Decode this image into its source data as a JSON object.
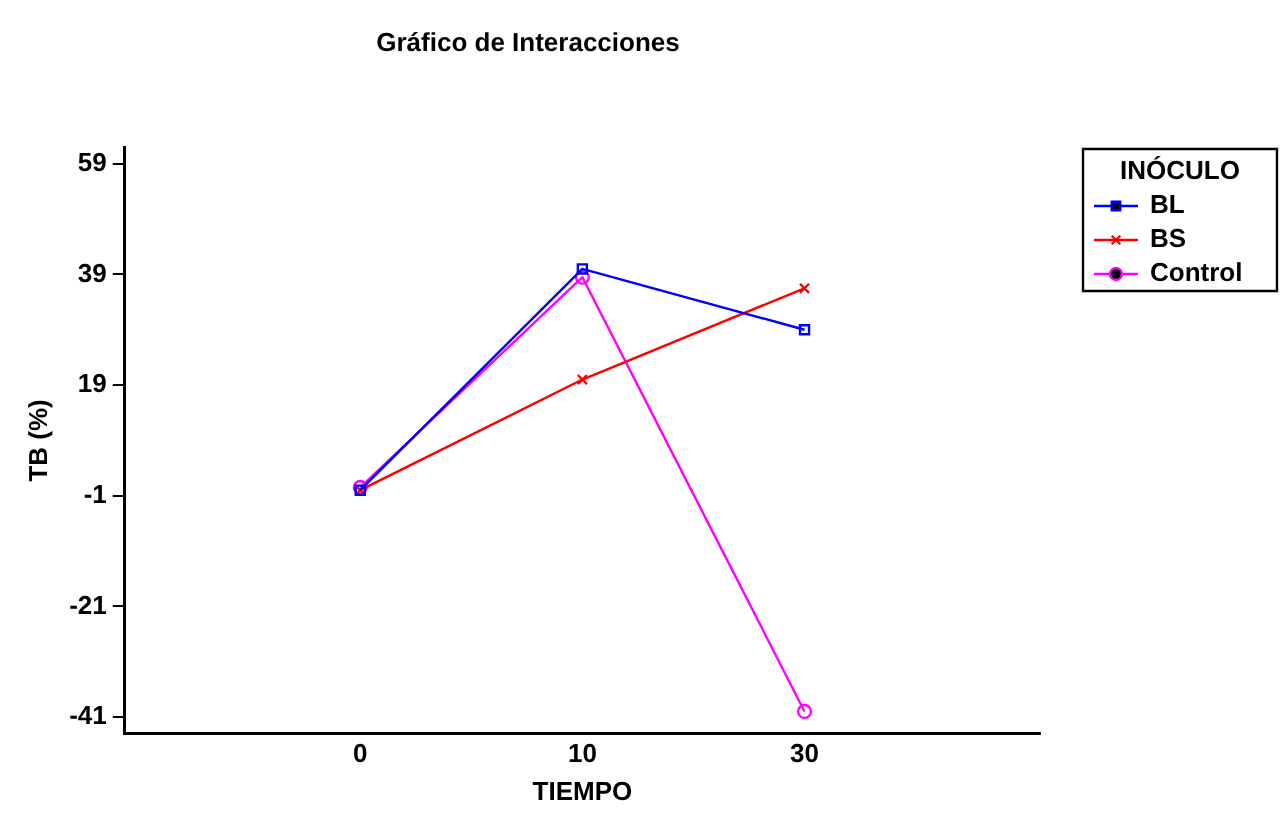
{
  "chart_data": {
    "type": "line",
    "title": "Gráfico de Interacciones",
    "xlabel": "TIEMPO",
    "ylabel": "TB (%)",
    "legend_title": "INÓCULO",
    "categories": [
      "0",
      "10",
      "30"
    ],
    "series": [
      {
        "name": "BL",
        "color": "#0000ff",
        "marker": "square",
        "values": [
          0,
          40,
          29
        ]
      },
      {
        "name": "BS",
        "color": "#ff0000",
        "marker": "cross",
        "values": [
          0,
          20,
          36.5
        ]
      },
      {
        "name": "Control",
        "color": "#ff00ff",
        "marker": "circle",
        "values": [
          0.5,
          38.5,
          -40
        ]
      }
    ],
    "ylim": [
      -44,
      62
    ],
    "yticks": [
      59,
      39,
      19,
      -1,
      -21,
      -41
    ],
    "grid": false,
    "legend": "top right",
    "line_style": "solid"
  }
}
